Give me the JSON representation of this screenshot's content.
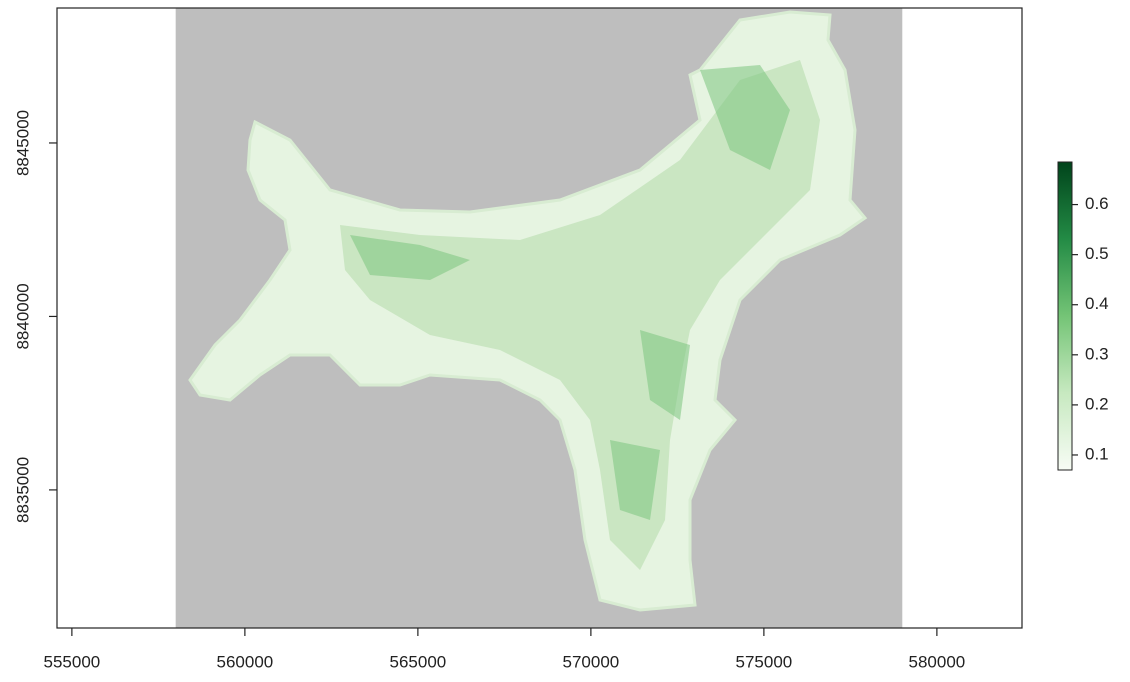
{
  "chart_data": {
    "type": "raster",
    "xlim": [
      554570,
      582460
    ],
    "ylim": [
      8831020,
      8848890
    ],
    "xticks": [
      555000,
      560000,
      565000,
      570000,
      575000,
      580000
    ],
    "yticks": [
      8835000,
      8840000,
      8845000
    ],
    "raster_extent": [
      558000,
      579000
    ],
    "na_color": "#bebebe",
    "colorbar": {
      "limits": [
        0.07,
        0.685
      ],
      "ticks": [
        0.1,
        0.2,
        0.3,
        0.4,
        0.5,
        0.6
      ],
      "colors": [
        "#f7fcf5",
        "#c7e9c0",
        "#74c476",
        "#238b45",
        "#00441b"
      ]
    }
  }
}
